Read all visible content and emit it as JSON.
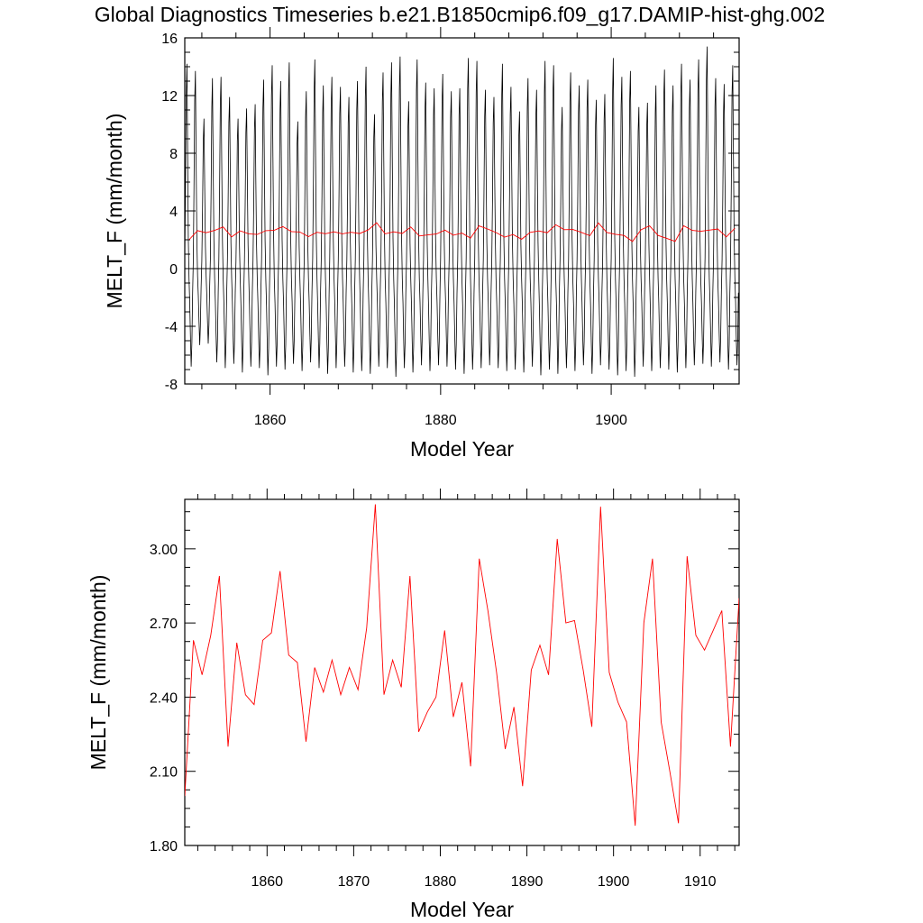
{
  "title": "Global Diagnostics Timeseries b.e21.B1850cmip6.f09_g17.DAMIP-hist-ghg.002",
  "colors": {
    "monthly": "#000000",
    "annual": "#ff0000",
    "axes": "#000000"
  },
  "chart_data": [
    {
      "type": "line",
      "xlabel": "Model Year",
      "ylabel": "MELT_F (mm/month)",
      "xlim": [
        1850,
        1915
      ],
      "ylim": [
        -8,
        16
      ],
      "xticks": [
        1860,
        1880,
        1900
      ],
      "xtick_labels": [
        "1860",
        "1880",
        "1900"
      ],
      "yticks": [
        -8,
        -4,
        0,
        4,
        8,
        12,
        16
      ],
      "ytick_labels": [
        "-8",
        "-4",
        "0",
        "4",
        "8",
        "12",
        "16"
      ],
      "zero_line": true,
      "grid": false,
      "series": [
        {
          "kind": "monthly",
          "color": "#000000",
          "start_year": 1850,
          "step": 0.0833,
          "annual_peaks": [
            14.2,
            13.7,
            10.4,
            13.2,
            13.3,
            11.9,
            10.4,
            11.1,
            11.4,
            13.1,
            14.1,
            13.0,
            14.3,
            10.2,
            12.3,
            14.5,
            12.7,
            13.3,
            12.6,
            11.9,
            13.0,
            14.0,
            10.7,
            13.6,
            14.3,
            14.7,
            11.6,
            14.5,
            12.9,
            12.5,
            13.5,
            12.3,
            12.5,
            14.6,
            14.4,
            12.4,
            11.9,
            14.2,
            12.6,
            10.9,
            13.2,
            12.4,
            14.4,
            14.1,
            11.2,
            13.6,
            12.7,
            13.1,
            11.7,
            12.1,
            14.6,
            13.3,
            13.7,
            11.2,
            11.5,
            12.7,
            13.8,
            12.7,
            14.2,
            13.1,
            14.5,
            15.4,
            13.2,
            12.8,
            14.1
          ],
          "annual_troughs": [
            -6.8,
            -5.3,
            -5.2,
            -6.5,
            -6.9,
            -6.6,
            -7.2,
            -6.8,
            -6.9,
            -7.4,
            -6.8,
            -7.0,
            -6.6,
            -7.1,
            -6.5,
            -6.9,
            -7.3,
            -6.9,
            -6.8,
            -7.2,
            -7.1,
            -7.3,
            -6.8,
            -6.9,
            -7.5,
            -6.9,
            -7.2,
            -6.7,
            -7.1,
            -6.7,
            -6.8,
            -7.0,
            -7.3,
            -7.0,
            -6.9,
            -6.7,
            -6.9,
            -7.1,
            -7.0,
            -7.2,
            -6.8,
            -7.4,
            -7.0,
            -7.3,
            -6.9,
            -7.1,
            -6.7,
            -7.3,
            -6.7,
            -7.0,
            -7.4,
            -7.1,
            -7.5,
            -6.8,
            -7.1,
            -6.9,
            -7.0,
            -7.2,
            -6.9,
            -6.7,
            -6.6,
            -6.8,
            -6.5,
            -7.0,
            -6.7
          ]
        },
        {
          "kind": "annual",
          "color": "#ff0000",
          "x": [
            1850.5,
            1851.5,
            1852.5,
            1853.5,
            1854.5,
            1855.5,
            1856.5,
            1857.5,
            1858.5,
            1859.5,
            1860.5,
            1861.5,
            1862.5,
            1863.5,
            1864.5,
            1865.5,
            1866.5,
            1867.5,
            1868.5,
            1869.5,
            1870.5,
            1871.5,
            1872.5,
            1873.5,
            1874.5,
            1875.5,
            1876.5,
            1877.5,
            1878.5,
            1879.5,
            1880.5,
            1881.5,
            1882.5,
            1883.5,
            1884.5,
            1885.5,
            1886.5,
            1887.5,
            1888.5,
            1889.5,
            1890.5,
            1891.5,
            1892.5,
            1893.5,
            1894.5,
            1895.5,
            1896.5,
            1897.5,
            1898.5,
            1899.5,
            1900.5,
            1901.5,
            1902.5,
            1903.5,
            1904.5,
            1905.5,
            1906.5,
            1907.5,
            1908.5,
            1909.5,
            1910.5,
            1911.5,
            1912.5,
            1913.5,
            1914.5
          ],
          "values": [
            2.0,
            2.63,
            2.49,
            2.65,
            2.89,
            2.2,
            2.62,
            2.41,
            2.37,
            2.63,
            2.66,
            2.91,
            2.57,
            2.54,
            2.22,
            2.52,
            2.42,
            2.55,
            2.41,
            2.52,
            2.43,
            2.68,
            3.18,
            2.41,
            2.55,
            2.44,
            2.89,
            2.26,
            2.34,
            2.4,
            2.67,
            2.32,
            2.46,
            2.12,
            2.96,
            2.75,
            2.5,
            2.19,
            2.36,
            2.04,
            2.51,
            2.61,
            2.49,
            3.04,
            2.7,
            2.71,
            2.51,
            2.28,
            3.17,
            2.5,
            2.38,
            2.3,
            1.88,
            2.7,
            2.96,
            2.3,
            2.1,
            1.89,
            2.97,
            2.65,
            2.59,
            2.67,
            2.75,
            2.2,
            2.8
          ]
        }
      ]
    },
    {
      "type": "line",
      "xlabel": "Model Year",
      "ylabel": "MELT_F (mm/month)",
      "xlim": [
        1850.5,
        1914.5
      ],
      "ylim": [
        1.8,
        3.2
      ],
      "xticks": [
        1860,
        1870,
        1880,
        1890,
        1900,
        1910
      ],
      "xtick_labels": [
        "1860",
        "1870",
        "1880",
        "1890",
        "1900",
        "1910"
      ],
      "yticks": [
        1.8,
        2.1,
        2.4,
        2.7,
        3.0
      ],
      "ytick_labels": [
        "1.80",
        "2.10",
        "2.40",
        "2.70",
        "3.00"
      ],
      "grid": false,
      "series": [
        {
          "kind": "annual",
          "color": "#ff0000",
          "x": [
            1850.5,
            1851.5,
            1852.5,
            1853.5,
            1854.5,
            1855.5,
            1856.5,
            1857.5,
            1858.5,
            1859.5,
            1860.5,
            1861.5,
            1862.5,
            1863.5,
            1864.5,
            1865.5,
            1866.5,
            1867.5,
            1868.5,
            1869.5,
            1870.5,
            1871.5,
            1872.5,
            1873.5,
            1874.5,
            1875.5,
            1876.5,
            1877.5,
            1878.5,
            1879.5,
            1880.5,
            1881.5,
            1882.5,
            1883.5,
            1884.5,
            1885.5,
            1886.5,
            1887.5,
            1888.5,
            1889.5,
            1890.5,
            1891.5,
            1892.5,
            1893.5,
            1894.5,
            1895.5,
            1896.5,
            1897.5,
            1898.5,
            1899.5,
            1900.5,
            1901.5,
            1902.5,
            1903.5,
            1904.5,
            1905.5,
            1906.5,
            1907.5,
            1908.5,
            1909.5,
            1910.5,
            1911.5,
            1912.5,
            1913.5,
            1914.5
          ],
          "values": [
            2.0,
            2.63,
            2.49,
            2.65,
            2.89,
            2.2,
            2.62,
            2.41,
            2.37,
            2.63,
            2.66,
            2.91,
            2.57,
            2.54,
            2.22,
            2.52,
            2.42,
            2.55,
            2.41,
            2.52,
            2.43,
            2.68,
            3.18,
            2.41,
            2.55,
            2.44,
            2.89,
            2.26,
            2.34,
            2.4,
            2.67,
            2.32,
            2.46,
            2.12,
            2.96,
            2.75,
            2.5,
            2.19,
            2.36,
            2.04,
            2.51,
            2.61,
            2.49,
            3.04,
            2.7,
            2.71,
            2.51,
            2.28,
            3.17,
            2.5,
            2.38,
            2.3,
            1.88,
            2.7,
            2.96,
            2.3,
            2.1,
            1.89,
            2.97,
            2.65,
            2.59,
            2.67,
            2.75,
            2.2,
            2.8
          ]
        }
      ]
    }
  ]
}
